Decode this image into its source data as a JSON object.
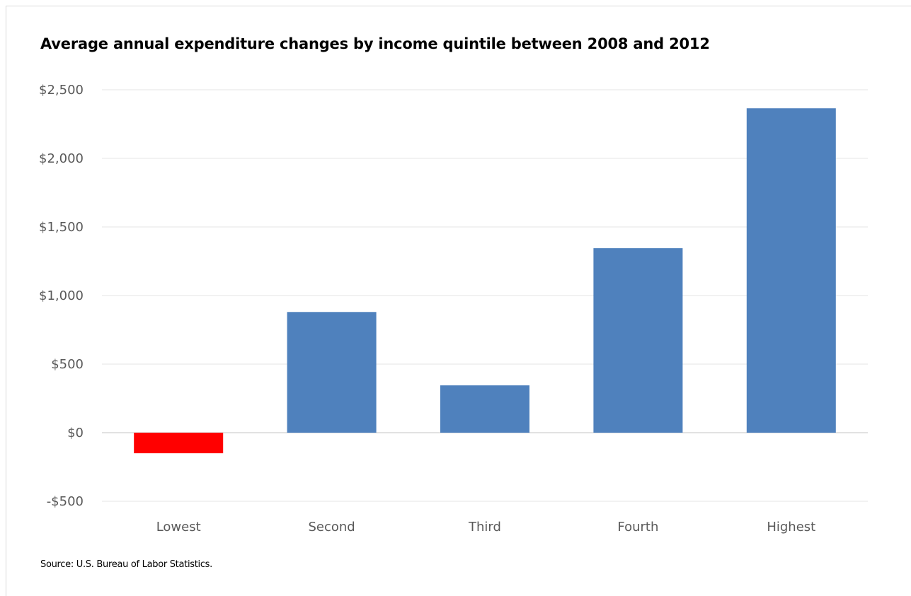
{
  "chart_data": {
    "type": "bar",
    "title": "Average annual expenditure changes by income quintile between 2008 and 2012",
    "xlabel": "",
    "ylabel": "",
    "categories": [
      "Lowest",
      "Second",
      "Third",
      "Fourth",
      "Highest"
    ],
    "values": [
      -150,
      880,
      345,
      1345,
      2365
    ],
    "bar_colors": [
      "#ff0000",
      "#4f81bd",
      "#4f81bd",
      "#4f81bd",
      "#4f81bd"
    ],
    "ylim": [
      -500,
      2500
    ],
    "yticks": [
      2500,
      2000,
      1500,
      1000,
      500,
      0,
      -500
    ],
    "ytick_labels": [
      "$2,500",
      "$2,000",
      "$1,500",
      "$1,000",
      "$500",
      "$0",
      "-$500"
    ],
    "grid": true,
    "legend": "none",
    "source": "Source: U.S. Bureau of Labor Statistics."
  },
  "colors": {
    "grid": "#e6e6e6",
    "zero_line": "#d9d9d9",
    "tick_text": "#595959"
  }
}
